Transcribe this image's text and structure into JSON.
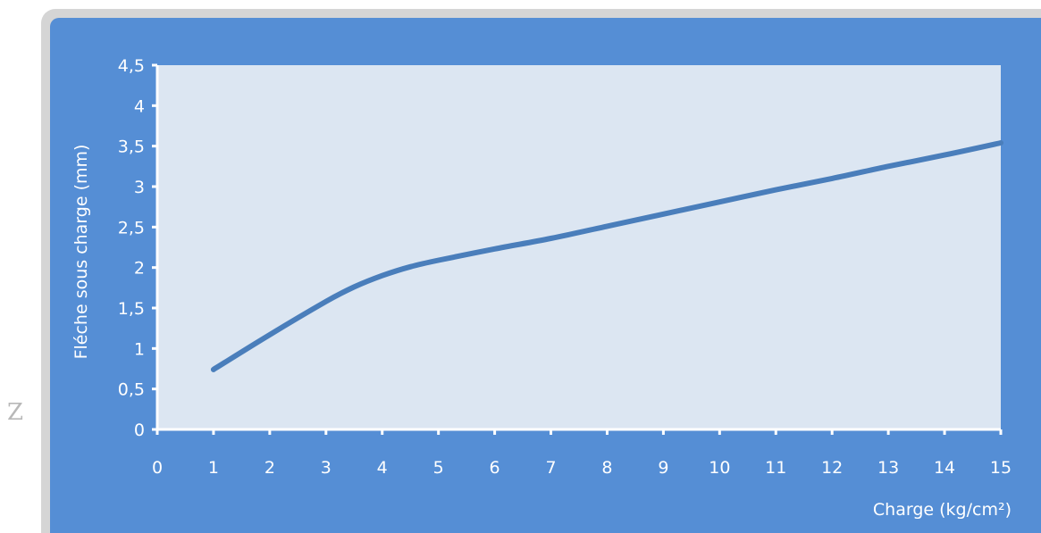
{
  "side_letter": "Z",
  "colors": {
    "panel": "#558ed5",
    "plot_area": "#dce6f2",
    "line": "#4a7ebb",
    "axis": "#ffffff",
    "frame": "#d5d5d5"
  },
  "chart_data": {
    "type": "line",
    "title": "",
    "xlabel": "Charge (kg/cm²)",
    "ylabel": "Fléche sous charge  (mm)",
    "xlim": [
      0,
      15
    ],
    "ylim": [
      0,
      4.5
    ],
    "grid": false,
    "x_ticks": [
      "0",
      "1",
      "2",
      "3",
      "4",
      "5",
      "6",
      "7",
      "8",
      "9",
      "10",
      "11",
      "12",
      "13",
      "14",
      "15"
    ],
    "y_ticks": [
      "0",
      "0,5",
      "1",
      "1,5",
      "2",
      "2,5",
      "3",
      "3,5",
      "4",
      "4,5"
    ],
    "series": [
      {
        "x": [
          1,
          2,
          3,
          3.5,
          4,
          4.5,
          5,
          6,
          7,
          8,
          9,
          10,
          11,
          12,
          13,
          14,
          15
        ],
        "values": [
          0.74,
          1.17,
          1.58,
          1.76,
          1.9,
          2.01,
          2.09,
          2.23,
          2.36,
          2.51,
          2.66,
          2.81,
          2.96,
          3.1,
          3.25,
          3.39,
          3.54
        ]
      }
    ]
  }
}
